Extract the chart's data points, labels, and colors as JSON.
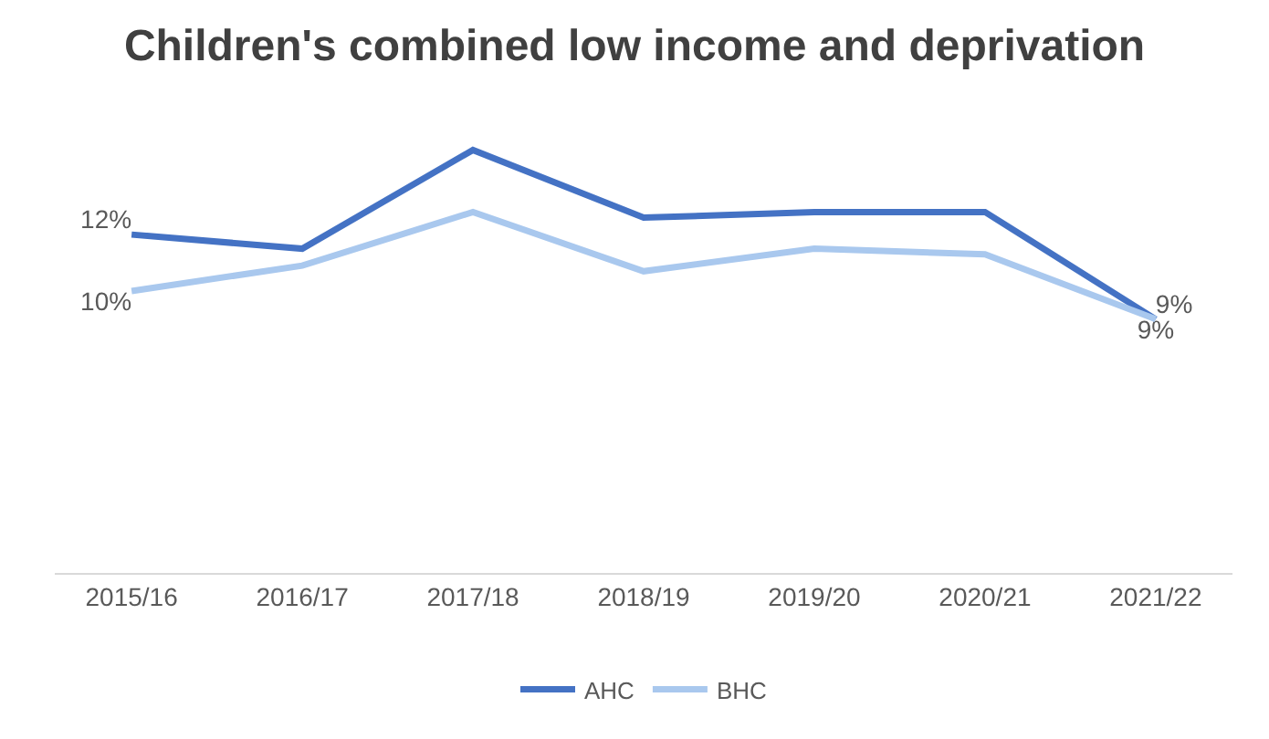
{
  "chart_data": {
    "type": "line",
    "title": "Children's combined low income and deprivation",
    "categories": [
      "2015/16",
      "2016/17",
      "2017/18",
      "2018/19",
      "2019/20",
      "2020/21",
      "2021/22"
    ],
    "series": [
      {
        "name": "AHC",
        "color": "#4472c4",
        "values": [
          12,
          11.5,
          15,
          12.6,
          12.8,
          12.8,
          9
        ],
        "value_labels": [
          "12%",
          null,
          null,
          null,
          null,
          null,
          "9%"
        ]
      },
      {
        "name": "BHC",
        "color": "#a9c8ee",
        "values": [
          10,
          10.9,
          12.8,
          10.7,
          11.5,
          11.3,
          9
        ],
        "value_labels": [
          "10%",
          null,
          null,
          null,
          null,
          null,
          "9%"
        ]
      }
    ],
    "tick_labels": "x",
    "grid": false,
    "legend": "bottom",
    "marker": "none",
    "line_style": "solid"
  }
}
